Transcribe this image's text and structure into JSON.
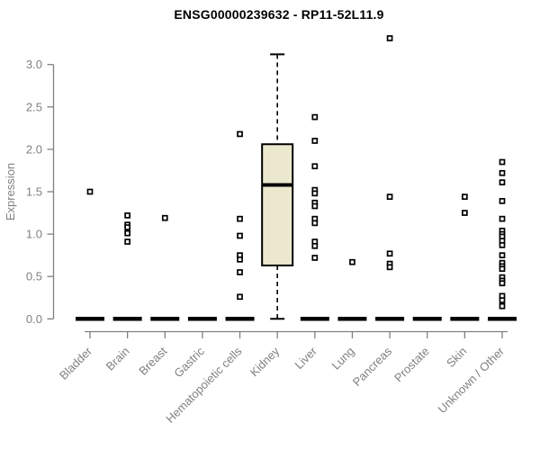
{
  "chart_data": {
    "type": "box",
    "title": "ENSG00000239632 - RP11-52L11.9",
    "xlabel": "",
    "ylabel": "Expression",
    "ylim": [
      0,
      3.35
    ],
    "yticks": [
      0.0,
      0.5,
      1.0,
      1.5,
      2.0,
      2.5,
      3.0
    ],
    "grid": false,
    "legend": false,
    "categories": [
      "Bladder",
      "Brain",
      "Breast",
      "Gastric",
      "Hematopoietic cells",
      "Kidney",
      "Liver",
      "Lung",
      "Pancreas",
      "Prostate",
      "Skin",
      "Unknown / Other"
    ],
    "boxes": [
      {
        "category": "Bladder",
        "q1": 0,
        "median": 0,
        "q3": 0,
        "whisker_low": 0,
        "whisker_high": 0,
        "outliers": [
          1.5
        ]
      },
      {
        "category": "Brain",
        "q1": 0,
        "median": 0,
        "q3": 0,
        "whisker_low": 0,
        "whisker_high": 0,
        "outliers": [
          1.22,
          1.11,
          1.08,
          1.01,
          0.91
        ]
      },
      {
        "category": "Breast",
        "q1": 0,
        "median": 0,
        "q3": 0,
        "whisker_low": 0,
        "whisker_high": 0,
        "outliers": [
          1.19
        ]
      },
      {
        "category": "Gastric",
        "q1": 0,
        "median": 0,
        "q3": 0,
        "whisker_low": 0,
        "whisker_high": 0,
        "outliers": []
      },
      {
        "category": "Hematopoietic cells",
        "q1": 0,
        "median": 0,
        "q3": 0,
        "whisker_low": 0,
        "whisker_high": 0,
        "outliers": [
          2.18,
          1.18,
          0.98,
          0.75,
          0.7,
          0.55,
          0.26
        ]
      },
      {
        "category": "Kidney",
        "q1": 0.63,
        "median": 1.58,
        "q3": 2.06,
        "whisker_low": 0,
        "whisker_high": 3.12,
        "outliers": []
      },
      {
        "category": "Liver",
        "q1": 0,
        "median": 0,
        "q3": 0,
        "whisker_low": 0,
        "whisker_high": 0,
        "outliers": [
          2.38,
          2.1,
          1.8,
          1.52,
          1.48,
          1.37,
          1.33,
          1.18,
          1.13,
          0.91,
          0.86,
          0.72
        ]
      },
      {
        "category": "Lung",
        "q1": 0,
        "median": 0,
        "q3": 0,
        "whisker_low": 0,
        "whisker_high": 0,
        "outliers": [
          0.67
        ]
      },
      {
        "category": "Pancreas",
        "q1": 0,
        "median": 0,
        "q3": 0,
        "whisker_low": 0,
        "whisker_high": 0,
        "outliers": [
          3.31,
          1.44,
          0.77,
          0.65,
          0.61
        ]
      },
      {
        "category": "Prostate",
        "q1": 0,
        "median": 0,
        "q3": 0,
        "whisker_low": 0,
        "whisker_high": 0,
        "outliers": []
      },
      {
        "category": "Skin",
        "q1": 0,
        "median": 0,
        "q3": 0,
        "whisker_low": 0,
        "whisker_high": 0,
        "outliers": [
          1.44,
          1.25
        ]
      },
      {
        "category": "Unknown / Other",
        "q1": 0,
        "median": 0,
        "q3": 0,
        "whisker_low": 0,
        "whisker_high": 0,
        "outliers": [
          1.85,
          1.72,
          1.61,
          1.39,
          1.18,
          1.04,
          1.0,
          0.97,
          0.92,
          0.87,
          0.75,
          0.66,
          0.62,
          0.59,
          0.49,
          0.45,
          0.42,
          0.27,
          0.22,
          0.15
        ]
      }
    ],
    "colors": {
      "background": "#ffffff",
      "title": "#000000",
      "axis": "#808080",
      "box_fill": "#ece8cd",
      "box_border": "#000000",
      "median": "#000000",
      "point_border": "#000000",
      "point_fill": "#ffffff"
    }
  }
}
